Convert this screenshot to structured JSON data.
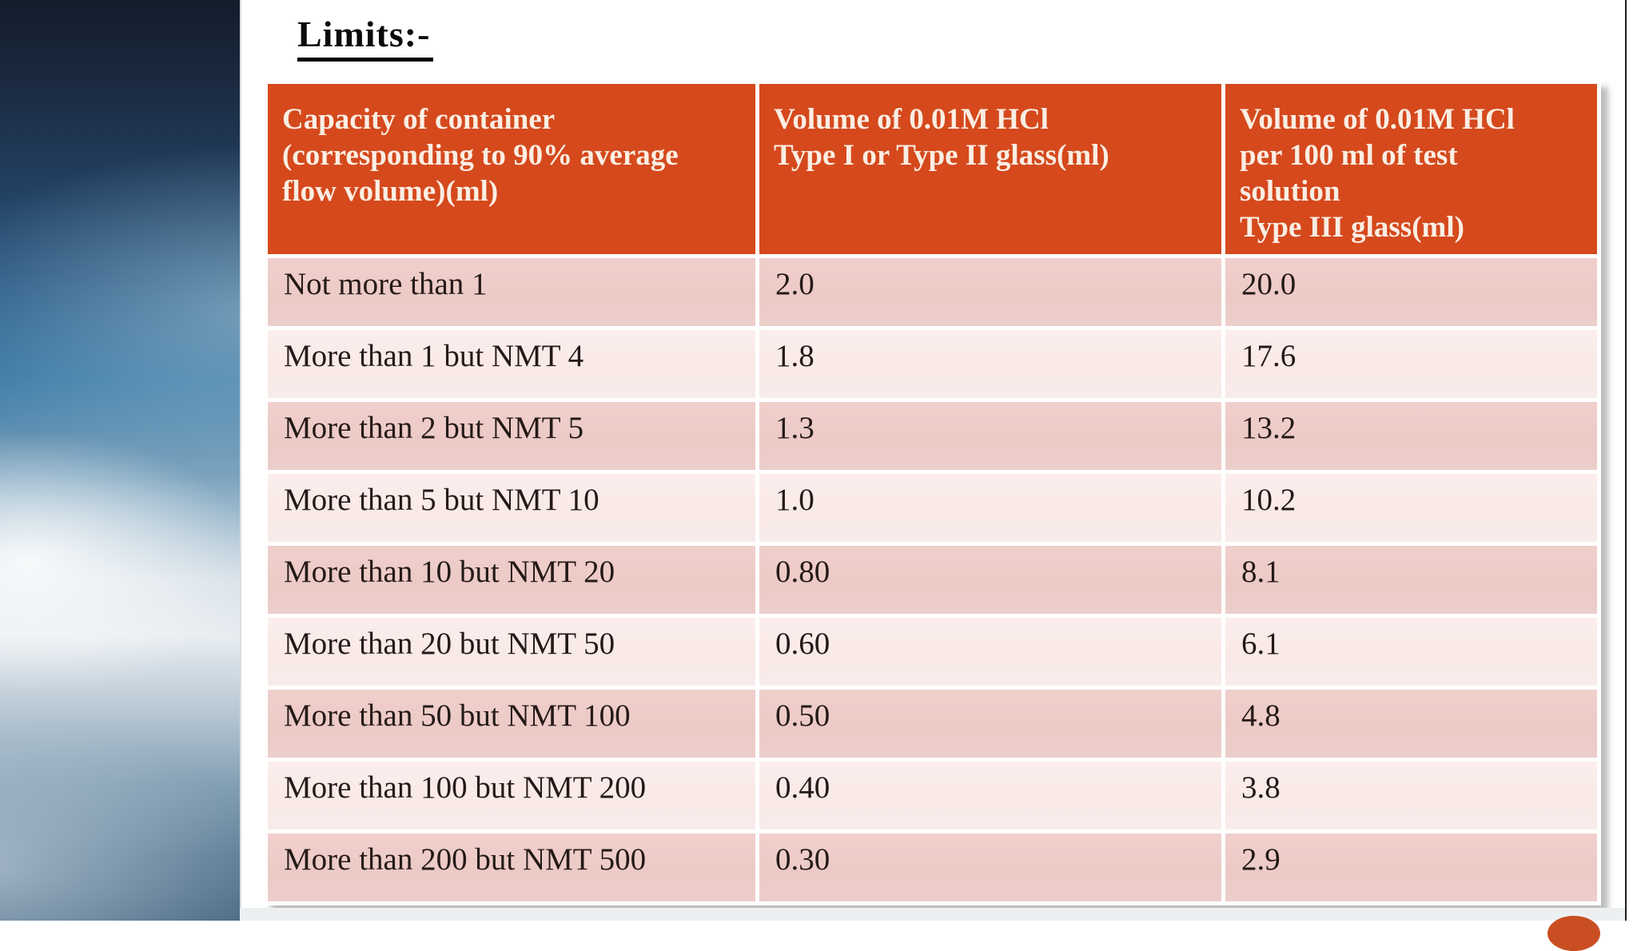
{
  "slide": {
    "title": "Limits:-"
  },
  "table": {
    "headers": [
      "Capacity of container\n(corresponding to 90% average\nflow volume)(ml)",
      "Volume of 0.01M HCl\nType I or Type II glass(ml)",
      "Volume of 0.01M HCl\nper 100 ml of test\nsolution\nType III glass(ml)"
    ],
    "rows": [
      [
        "Not more than 1",
        "2.0",
        "20.0"
      ],
      [
        "More than 1 but NMT 4",
        "1.8",
        "17.6"
      ],
      [
        "More than 2 but NMT 5",
        "1.3",
        "13.2"
      ],
      [
        "More than 5 but NMT 10",
        "1.0",
        "10.2"
      ],
      [
        "More than 10 but NMT 20",
        "0.80",
        "8.1"
      ],
      [
        "More than 20 but NMT 50",
        "0.60",
        "6.1"
      ],
      [
        "More than 50 but NMT 100",
        "0.50",
        "4.8"
      ],
      [
        "More than 100 but NMT 200",
        "0.40",
        "3.8"
      ],
      [
        "More than 200 but NMT 500",
        "0.30",
        "2.9"
      ]
    ]
  },
  "colors": {
    "header_bg": "#d5491d",
    "header_text": "#faeee3",
    "row_dark": "#eccac6",
    "row_light": "#f9e9e7",
    "body_text": "#241a18",
    "ornament": "#c94f22"
  }
}
